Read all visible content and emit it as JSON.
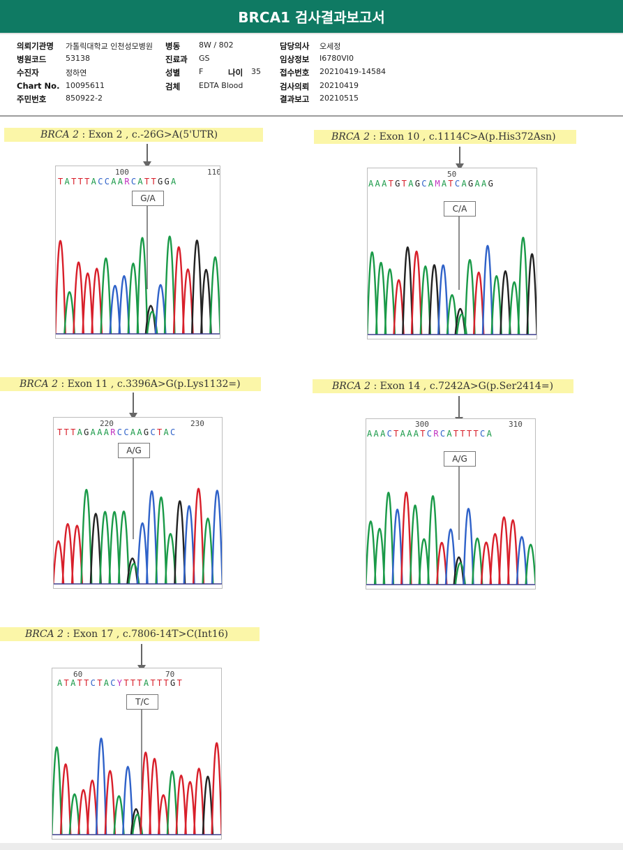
{
  "report": {
    "title": "BRCA1 검사결과보고서"
  },
  "header": {
    "institution_label": "의뢰기관명",
    "institution_value": "가톨릭대학교 인천성모병원",
    "ward_label": "병동",
    "ward_value": "8W / 802",
    "doctor_label": "담당의사",
    "doctor_value": "오세정",
    "hospital_code_label": "병원코드",
    "hospital_code_value": "53138",
    "department_label": "진료과",
    "department_value": "GS",
    "clinical_label": "임상정보",
    "clinical_value": "I6780VI0",
    "recipient_label": "수진자",
    "recipient_value": "정하연",
    "sex_label": "성별",
    "sex_value": "F",
    "age_label": "나이",
    "age_value": "35",
    "accession_label": "접수번호",
    "accession_value": "20210419-14584",
    "chart_label": "Chart No.",
    "chart_value": "10095611",
    "specimen_label": "검체",
    "specimen_value": "EDTA Blood",
    "request_label": "검사의뢰",
    "request_value": "20210419",
    "id_label": "주민번호",
    "id_value": "850922-2",
    "result_label": "결과보고",
    "result_value": "20210515"
  },
  "variants": [
    {
      "gene": "BRCA 2",
      "sep": " : ",
      "desc": "Exon 2 , c.-26G>A(5'UTR)",
      "pos_left": "100",
      "pos_right": "110",
      "sequence": "TATTTACCAARCATTGGA",
      "callout": "G/A"
    },
    {
      "gene": "BRCA 2",
      "sep": " : ",
      "desc": "Exon 10 , c.1114C>A(p.His372Asn)",
      "pos_left": "50",
      "pos_right": "",
      "sequence": "AAATGTAGCAMATCAGAAG",
      "callout": "C/A"
    },
    {
      "gene": "BRCA 2",
      "sep": " : ",
      "desc": "Exon 11 , c.3396A>G(p.Lys1132=)",
      "pos_left": "220",
      "pos_right": "230",
      "sequence": "TTTAGAAARCCAAGCTAC",
      "callout": "A/G"
    },
    {
      "gene": "BRCA 2",
      "sep": " : ",
      "desc": "Exon 14 , c.7242A>G(p.Ser2414=)",
      "pos_left": "300",
      "pos_right": "310",
      "sequence": "AAACTAAATCRCATTTTCA",
      "callout": "A/G"
    },
    {
      "gene": "BRCA 2",
      "sep": " : ",
      "desc": "Exon 17 , c.7806-14T>C(Int16)",
      "pos_left": "60",
      "pos_right": "70",
      "sequence": "ATATTCTACYTTTATTTGT",
      "callout": "T/C"
    }
  ],
  "colors": {
    "header_bg": "#0f7a63",
    "highlight": "#fbf6a8",
    "A": "#1a9a48",
    "C": "#2f62c9",
    "G": "#222222",
    "T": "#d81f2a"
  }
}
